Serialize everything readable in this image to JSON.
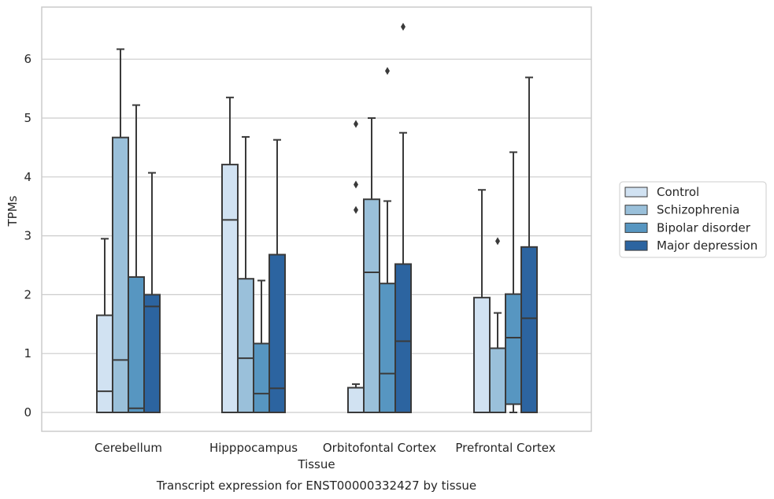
{
  "chart_data": {
    "type": "box",
    "caption": "Transcript expression for ENST00000332427 by tissue",
    "xlabel": "Tissue",
    "ylabel": "TPMs",
    "ylim": [
      -0.3,
      7.0
    ],
    "yticks": [
      0,
      1,
      2,
      3,
      4,
      5,
      6
    ],
    "grid": "horizontal",
    "legend_position": "right",
    "categories": [
      "Cerebellum",
      "Hipppocampus",
      "Orbitofontal Cortex",
      "Prefrontal Cortex"
    ],
    "series": [
      {
        "name": "Control",
        "color": "#d1e2f2",
        "boxes": [
          {
            "min": 0.0,
            "q1": 0.0,
            "median": 0.36,
            "q3": 1.65,
            "max": 2.95,
            "outliers": []
          },
          {
            "min": 0.0,
            "q1": 0.0,
            "median": 3.27,
            "q3": 4.21,
            "max": 5.35,
            "outliers": []
          },
          {
            "min": 0.0,
            "q1": 0.0,
            "median": 0.0,
            "q3": 0.42,
            "max": 0.48,
            "outliers": [
              3.44,
              3.87,
              4.9
            ]
          },
          {
            "min": 0.0,
            "q1": 0.0,
            "median": 0.0,
            "q3": 1.95,
            "max": 3.78,
            "outliers": []
          }
        ]
      },
      {
        "name": "Schizophrenia",
        "color": "#9ac0da",
        "boxes": [
          {
            "min": 0.0,
            "q1": 0.0,
            "median": 0.89,
            "q3": 4.67,
            "max": 6.17,
            "outliers": []
          },
          {
            "min": 0.0,
            "q1": 0.0,
            "median": 0.92,
            "q3": 2.27,
            "max": 4.68,
            "outliers": []
          },
          {
            "min": 0.0,
            "q1": 0.0,
            "median": 2.38,
            "q3": 3.62,
            "max": 5.0,
            "outliers": []
          },
          {
            "min": 0.0,
            "q1": 0.0,
            "median": 0.0,
            "q3": 1.09,
            "max": 1.69,
            "outliers": [
              2.91
            ]
          }
        ]
      },
      {
        "name": "Bipolar disorder",
        "color": "#5796c1",
        "boxes": [
          {
            "min": 0.0,
            "q1": 0.0,
            "median": 0.07,
            "q3": 2.3,
            "max": 5.22,
            "outliers": []
          },
          {
            "min": 0.0,
            "q1": 0.0,
            "median": 0.32,
            "q3": 1.17,
            "max": 2.24,
            "outliers": []
          },
          {
            "min": 0.0,
            "q1": 0.0,
            "median": 0.66,
            "q3": 2.19,
            "max": 3.59,
            "outliers": [
              5.8
            ]
          },
          {
            "min": 0.0,
            "q1": 0.14,
            "median": 1.27,
            "q3": 2.01,
            "max": 4.42,
            "outliers": []
          }
        ]
      },
      {
        "name": "Major depression",
        "color": "#2c64a0",
        "boxes": [
          {
            "min": 0.0,
            "q1": 0.0,
            "median": 1.8,
            "q3": 2.0,
            "max": 4.07,
            "outliers": []
          },
          {
            "min": 0.0,
            "q1": 0.0,
            "median": 0.41,
            "q3": 2.68,
            "max": 4.63,
            "outliers": []
          },
          {
            "min": 0.0,
            "q1": 0.0,
            "median": 1.21,
            "q3": 2.52,
            "max": 4.75,
            "outliers": [
              6.55
            ]
          },
          {
            "min": 0.0,
            "q1": 0.0,
            "median": 1.6,
            "q3": 2.81,
            "max": 5.69,
            "outliers": []
          }
        ]
      }
    ]
  }
}
